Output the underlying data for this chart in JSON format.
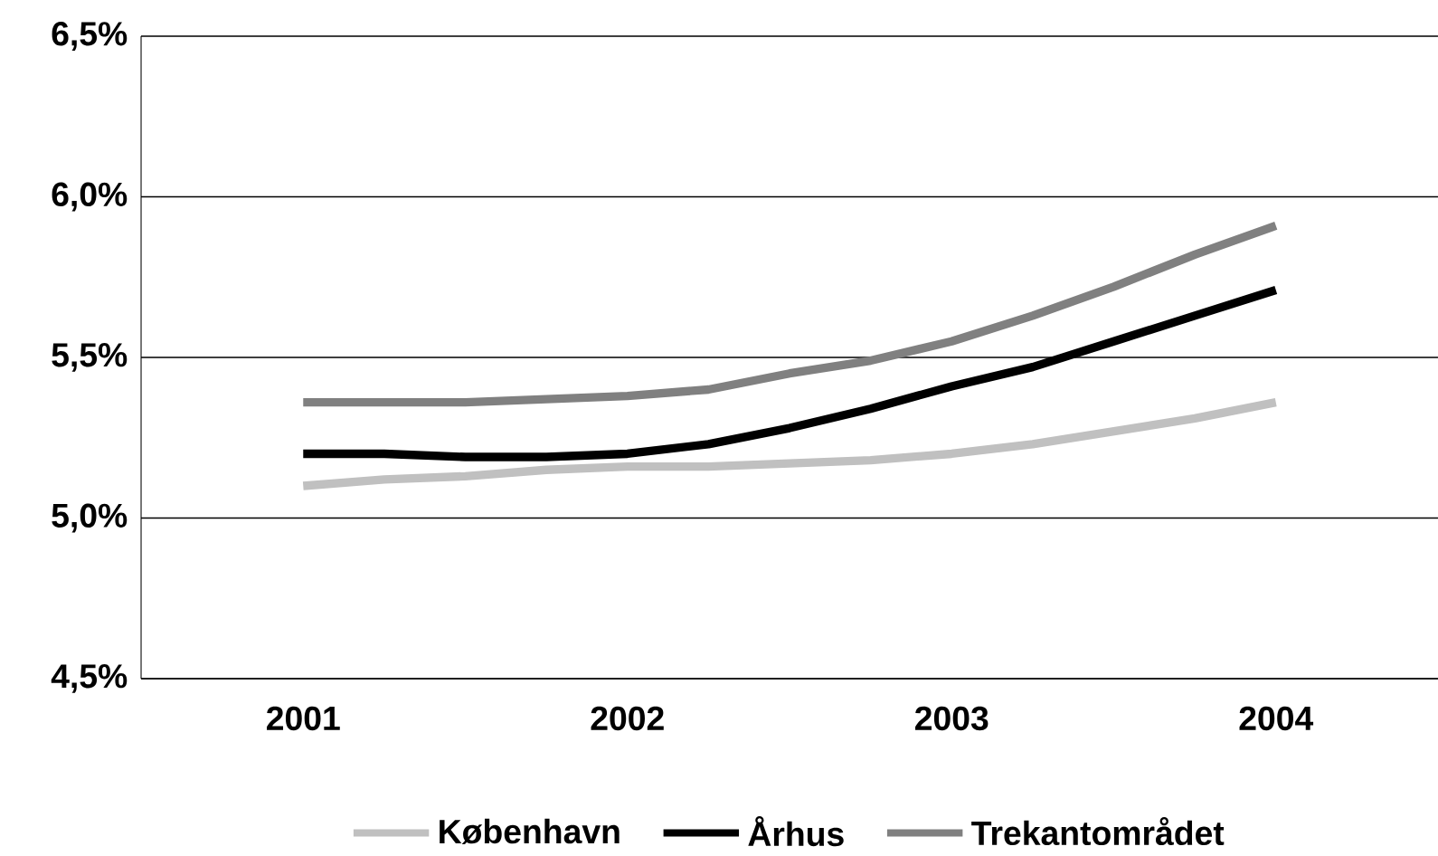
{
  "chart_data": {
    "type": "line",
    "x": [
      2001,
      2001.25,
      2001.5,
      2001.75,
      2002,
      2002.25,
      2002.5,
      2002.75,
      2003,
      2003.25,
      2003.5,
      2003.75,
      2004
    ],
    "series": [
      {
        "name": "København",
        "color": "#c0c0c0",
        "values": [
          5.1,
          5.12,
          5.13,
          5.15,
          5.16,
          5.16,
          5.17,
          5.18,
          5.2,
          5.23,
          5.27,
          5.31,
          5.36
        ]
      },
      {
        "name": "Århus",
        "color": "#000000",
        "values": [
          5.2,
          5.2,
          5.19,
          5.19,
          5.2,
          5.23,
          5.28,
          5.34,
          5.41,
          5.47,
          5.55,
          5.63,
          5.71
        ]
      },
      {
        "name": "Trekantområdet",
        "color": "#808080",
        "values": [
          5.36,
          5.36,
          5.36,
          5.37,
          5.38,
          5.4,
          5.45,
          5.49,
          5.55,
          5.63,
          5.72,
          5.82,
          5.91
        ]
      }
    ],
    "xlim": [
      2000.5,
      2004.5
    ],
    "xticks": [
      2001,
      2002,
      2003,
      2004
    ],
    "ylim": [
      4.5,
      6.5
    ],
    "yticks": [
      {
        "value": 4.5,
        "label": "4,5%"
      },
      {
        "value": 5.0,
        "label": "5,0%"
      },
      {
        "value": 5.5,
        "label": "5,5%"
      },
      {
        "value": 6.0,
        "label": "6,0%"
      },
      {
        "value": 6.5,
        "label": "6,5%"
      }
    ],
    "grid": "y",
    "legend": "bottom",
    "marker": "none",
    "line_style": "solid"
  }
}
